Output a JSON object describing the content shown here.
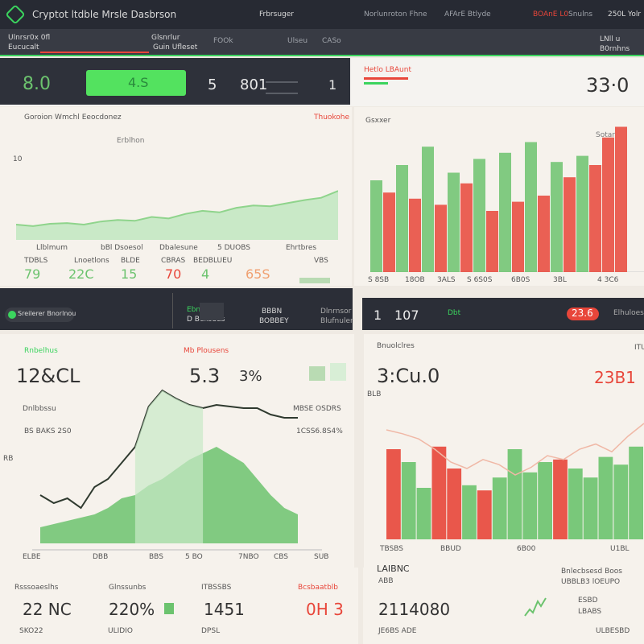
{
  "app": {
    "title": "Cryptot ltdble Mrsle Dasbrson",
    "nav": [
      "Frbrsuger",
      "Norlunroton Fhne",
      "AFArE Btlyde",
      "BOAnE L0",
      "Snulns",
      "250L Yolr"
    ]
  },
  "subbar": {
    "left": [
      "Ulnrsr0x 0fl",
      "Eucucalt"
    ],
    "mid": [
      "Glsnrlur",
      "Guin Ufleset"
    ],
    "right": [
      "FOOk",
      "Ulseu",
      "CASo"
    ],
    "right2": [
      "LNll u",
      "B0rnhns"
    ]
  },
  "kpis": {
    "k1": "8.0",
    "k2_button": "4.S",
    "k3": "5",
    "k4": "801",
    "k5": "1",
    "alert_label": "Hetlo LBAunt",
    "big": "33·0"
  },
  "panel_tl": {
    "title": "Goroion Wmchl Eeocdonez",
    "badge": "Thuokohe",
    "legend": "Erblhon",
    "y_label": "10",
    "x_labels": [
      "Llblmum",
      "bBl Dsoesol",
      "Dbalesune",
      "5 DUOBS",
      "Ehrtbres"
    ],
    "sub_labels": [
      "TDBLS",
      "Lnoetlons",
      "BLDE",
      "CBRAS",
      "BEDBLUEU",
      "VBS"
    ],
    "values": [
      "79",
      "22C",
      "15",
      "70",
      "4",
      "65S"
    ]
  },
  "panel_tr": {
    "title": "Gsxxer",
    "badge": "Sotar",
    "x_labels": [
      "S 8SB",
      "18OB",
      "3ALS",
      "S 6S0S",
      "6B0S",
      "3BL",
      "4 3C6"
    ]
  },
  "strip_l": {
    "label": "Sreilerer Bnorlnou",
    "mid": [
      "Ebnos",
      "D Bellsuus"
    ],
    "right": [
      "BBBN",
      "Dlnrnsor",
      "BOBBEY",
      "Blufnuler"
    ]
  },
  "strip_r": {
    "v1": "1",
    "v2": "107",
    "tag": "Dbt",
    "pill": "23.6",
    "right": "Elhuloes"
  },
  "panel_ml": {
    "left_label": "Rnbelhus",
    "left_value": "12&CL",
    "mid_label": "Mb Plousens",
    "mid_value": "5.3",
    "mid_value2": "3%",
    "ann1": "Dnlbbssu",
    "ann2": "BS BAKS 2S0",
    "ann3": "MBSE OSDRS",
    "ann4": "1CSS6.8S4%",
    "y_label": "RB",
    "x_labels": [
      "ELBE",
      "DBB",
      "BBS",
      "5 BO",
      "7NBO",
      "CBS",
      "SUB"
    ]
  },
  "panel_mr": {
    "label": "Bnuolclres",
    "value": "3:Cu.0",
    "sub": "BLB",
    "side_value": "23B1",
    "side_label": "ITULBS",
    "x_labels": [
      "TBSBS",
      "BBUD",
      "6B00",
      "U1BL"
    ]
  },
  "bottom": {
    "labels": [
      "Rsssoaeslhs",
      "Glnssunbs",
      "ITBSSBS",
      "Bcsbaatblb"
    ],
    "values": [
      "22 NC",
      "220%",
      "1451",
      "0H 3"
    ],
    "sub": [
      "SKO22",
      "ULIDIO",
      "DPSL"
    ],
    "right_label": "LAIBNC",
    "right_sub": "ABB",
    "right_value": "2114080",
    "right_foot": "JE6BS ADE",
    "right_notes": [
      "Bnlecbsesd Boos",
      "UBBLB3 lOEUPO",
      "ESBD",
      "LBABS",
      "ULBESBD"
    ]
  },
  "colors": {
    "accent_green": "#3bd45e",
    "down_red": "#e8463a",
    "chart_green": "#6cc36e",
    "dark": "#2b2e37"
  },
  "chart_data": [
    {
      "type": "area",
      "title": "Goroion Wmchl Eeocdonez",
      "x": [
        0,
        1,
        2,
        3,
        4,
        5,
        6,
        7,
        8,
        9,
        10,
        11,
        12,
        13,
        14,
        15,
        16,
        17,
        18,
        19
      ],
      "series": [
        {
          "values": [
            20,
            18,
            21,
            22,
            20,
            24,
            26,
            25,
            30,
            28,
            34,
            38,
            36,
            42,
            45,
            44,
            48,
            52,
            55,
            64
          ]
        }
      ],
      "ylim": [
        0,
        100
      ]
    },
    {
      "type": "bar",
      "title": "Gsxxer",
      "series": [
        {
          "name": "up",
          "values": [
            60,
            0,
            70,
            0,
            82,
            0,
            65,
            0,
            74,
            0,
            78,
            0,
            85,
            0,
            72,
            0,
            76,
            0,
            0,
            0
          ]
        },
        {
          "name": "down",
          "values": [
            0,
            52,
            0,
            48,
            0,
            44,
            0,
            58,
            0,
            40,
            0,
            46,
            0,
            50,
            0,
            62,
            0,
            70,
            88,
            95
          ]
        }
      ],
      "ylim": [
        0,
        100
      ]
    },
    {
      "type": "line",
      "series": [
        {
          "values": [
            30,
            25,
            28,
            22,
            35,
            40,
            50,
            60,
            85,
            95,
            90,
            86,
            84,
            86,
            85,
            84,
            84,
            80,
            78,
            78
          ]
        }
      ],
      "area_values": [
        10,
        12,
        14,
        16,
        18,
        22,
        28,
        30,
        36,
        40,
        46,
        52,
        56,
        60,
        55,
        50,
        40,
        30,
        22,
        18
      ],
      "ylim": [
        0,
        100
      ]
    },
    {
      "type": "bar",
      "series": [
        {
          "name": "down",
          "values": [
            70,
            0,
            0,
            72,
            55,
            0,
            38,
            0,
            0,
            0,
            0,
            62,
            0,
            0,
            0,
            0,
            0
          ]
        },
        {
          "name": "up",
          "values": [
            0,
            60,
            40,
            0,
            0,
            42,
            0,
            48,
            70,
            52,
            60,
            0,
            55,
            48,
            64,
            58,
            72
          ]
        }
      ],
      "line": [
        85,
        82,
        78,
        70,
        60,
        55,
        62,
        58,
        50,
        56,
        65,
        62,
        70,
        74,
        68,
        80,
        90
      ],
      "ylim": [
        0,
        100
      ]
    }
  ]
}
